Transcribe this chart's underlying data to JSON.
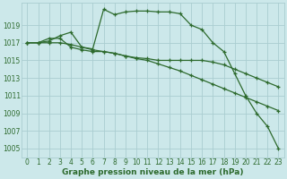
{
  "title": "Graphe pression niveau de la mer (hPa)",
  "bg_color": "#cce8ea",
  "grid_color": "#aacdd0",
  "line_color": "#2d6a2d",
  "xlim": [
    -0.5,
    23.5
  ],
  "ylim": [
    1004,
    1021.5
  ],
  "yticks": [
    1005,
    1007,
    1009,
    1011,
    1013,
    1015,
    1017,
    1019
  ],
  "xticks": [
    0,
    1,
    2,
    3,
    4,
    5,
    6,
    7,
    8,
    9,
    10,
    11,
    12,
    13,
    14,
    15,
    16,
    17,
    18,
    19,
    20,
    21,
    22,
    23
  ],
  "series1": [
    1017.0,
    1017.0,
    1017.2,
    1017.8,
    1018.2,
    1016.5,
    1016.3,
    1020.8,
    1020.2,
    1020.5,
    1020.6,
    1020.6,
    1020.5,
    1020.5,
    1020.3,
    1019.0,
    1018.5,
    1017.0,
    1016.0,
    1013.5,
    1011.0,
    1009.0,
    1007.5,
    1005.0
  ],
  "series2": [
    1017.0,
    1017.0,
    1017.5,
    1017.5,
    1016.5,
    1016.2,
    1016.0,
    1016.0,
    1015.8,
    1015.5,
    1015.3,
    1015.2,
    1015.0,
    1015.0,
    1015.0,
    1015.0,
    1015.0,
    1014.8,
    1014.5,
    1014.0,
    1013.5,
    1013.0,
    1012.5,
    1012.0
  ],
  "series3": [
    1017.0,
    1017.0,
    1017.0,
    1017.0,
    1016.8,
    1016.5,
    1016.2,
    1016.0,
    1015.8,
    1015.5,
    1015.2,
    1015.0,
    1014.6,
    1014.2,
    1013.8,
    1013.3,
    1012.8,
    1012.3,
    1011.8,
    1011.3,
    1010.8,
    1010.3,
    1009.8,
    1009.3
  ],
  "marker": "+",
  "markersize": 3.5,
  "linewidth": 0.9,
  "tick_fontsize": 5.5,
  "title_fontsize": 6.5,
  "title_fontweight": "bold"
}
